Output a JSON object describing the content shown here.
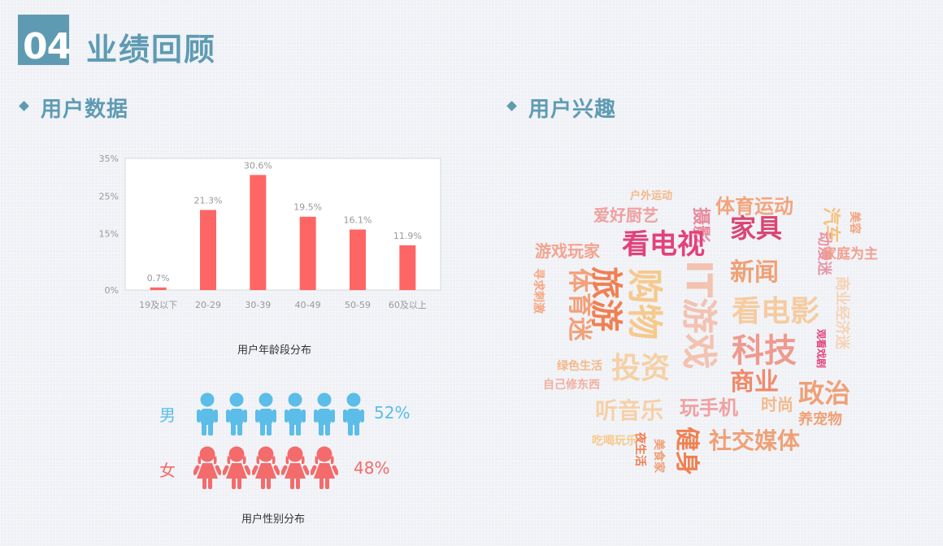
{
  "header": {
    "number": "04",
    "title": "业绩回顾"
  },
  "sections": {
    "left_title": "用户数据",
    "right_title": "用户兴趣"
  },
  "chart_data": {
    "type": "bar",
    "title": "用户年龄段分布",
    "categories": [
      "19及以下",
      "20-29",
      "30-39",
      "40-49",
      "50-59",
      "60及以上"
    ],
    "values": [
      0.7,
      21.3,
      30.6,
      19.5,
      16.1,
      11.9
    ],
    "value_labels": [
      "0.7%",
      "21.3%",
      "30.6%",
      "19.5%",
      "16.1%",
      "11.9%"
    ],
    "ylim": [
      0,
      35
    ],
    "yticks": [
      "0%",
      "15%",
      "25%",
      "35%"
    ],
    "color": "#fe6665",
    "grid": false
  },
  "gender": {
    "title": "用户性别分布",
    "male": {
      "label": "男",
      "percent": "52%",
      "icons": 6,
      "color": "#5bbde8"
    },
    "female": {
      "label": "女",
      "percent": "48%",
      "icons": 5,
      "color": "#f36b6b"
    }
  },
  "wordcloud": [
    {
      "text": "户外运动",
      "color": "#f4b98a"
    },
    {
      "text": "摄影",
      "color": "#e88a9c"
    },
    {
      "text": "体育运动",
      "color": "#f2a47c"
    },
    {
      "text": "爱好厨艺",
      "color": "#f0a0a0"
    },
    {
      "text": "看电视",
      "color": "#e2427a"
    },
    {
      "text": "家具",
      "color": "#d94774"
    },
    {
      "text": "汽车",
      "color": "#f6c27d"
    },
    {
      "text": "美容",
      "color": "#f4a37d"
    },
    {
      "text": "游戏玩家",
      "color": "#f3a48f"
    },
    {
      "text": "动漫迷",
      "color": "#e995a6"
    },
    {
      "text": "家庭为主",
      "color": "#f0a090"
    },
    {
      "text": "新闻",
      "color": "#f0a076"
    },
    {
      "text": "购物",
      "color": "#f6c98c"
    },
    {
      "text": "旅游",
      "color": "#f08052"
    },
    {
      "text": "体育迷",
      "color": "#f2a17b"
    },
    {
      "text": "寻求刺激",
      "color": "#f5a67f"
    },
    {
      "text": "IT游戏",
      "color": "#f3c2b1"
    },
    {
      "text": "看电影",
      "color": "#f6cba0"
    },
    {
      "text": "商业经济迷",
      "color": "#f6d3b5"
    },
    {
      "text": "科技",
      "color": "#ef9a8e"
    },
    {
      "text": "投资",
      "color": "#f6d0a6"
    },
    {
      "text": "观看戏剧",
      "color": "#e2427a"
    },
    {
      "text": "绿色生活",
      "color": "#f4b98a"
    },
    {
      "text": "自己修东西",
      "color": "#f2b0a0"
    },
    {
      "text": "商业",
      "color": "#ef8a6a"
    },
    {
      "text": "政治",
      "color": "#f0a076"
    },
    {
      "text": "听音乐",
      "color": "#f6d0a6"
    },
    {
      "text": "玩手机",
      "color": "#f0a0a0"
    },
    {
      "text": "时尚",
      "color": "#f4b98a"
    },
    {
      "text": "养宠物",
      "color": "#f0a076"
    },
    {
      "text": "吃喝玩乐",
      "color": "#f6c98c"
    },
    {
      "text": "夜生活",
      "color": "#f08052"
    },
    {
      "text": "美食家",
      "color": "#f0a076"
    },
    {
      "text": "健身",
      "color": "#f08052"
    },
    {
      "text": "社交媒体",
      "color": "#f0a076"
    }
  ]
}
